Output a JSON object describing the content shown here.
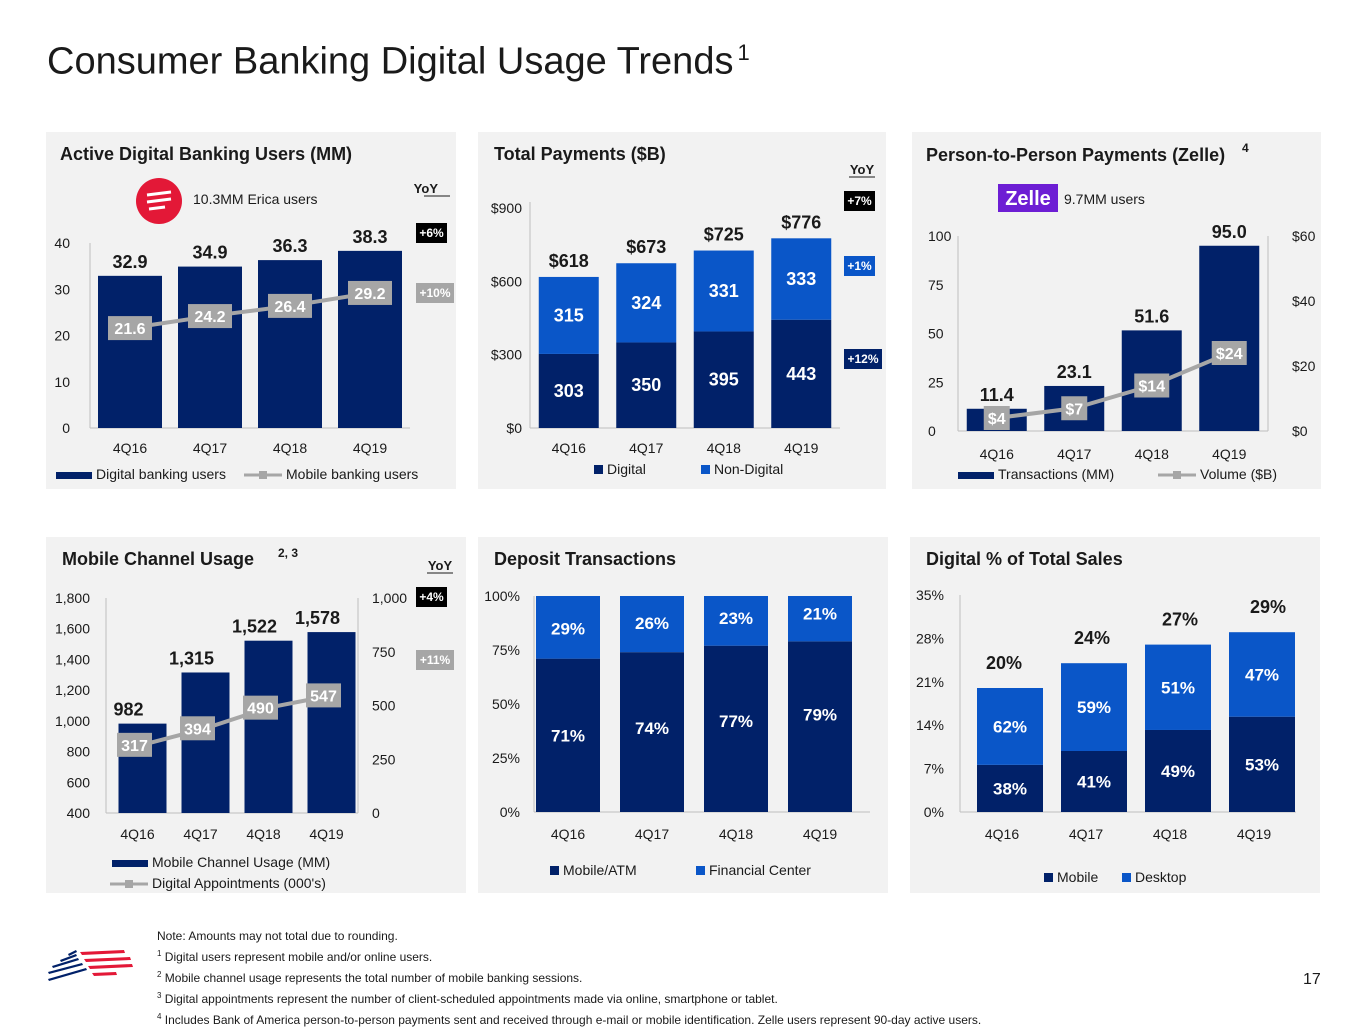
{
  "page": {
    "title": "Consumer Banking Digital Usage Trends",
    "title_sup": "1",
    "page_number": "17"
  },
  "footnotes": [
    {
      "sup": "",
      "text": "Note: Amounts may not total due to rounding."
    },
    {
      "sup": "1",
      "text": "Digital users represent mobile and/or online users."
    },
    {
      "sup": "2",
      "text": "Mobile channel usage represents the total number of mobile banking sessions."
    },
    {
      "sup": "3",
      "text": "Digital appointments represent the number of client-scheduled appointments made via online, smartphone or tablet."
    },
    {
      "sup": "4",
      "text": "Includes Bank of America person-to-person payments sent and received through e-mail or mobile identification. Zelle users represent 90-day active users."
    }
  ],
  "colors": {
    "navy": "#012169",
    "blue": "#0a56c8",
    "gray_line": "#a6a6a6",
    "panel_bg": "#f2f2f2",
    "brand_red": "#e31837"
  },
  "chart_data": [
    {
      "id": "active_users",
      "type": "bar",
      "title": "Active Digital Banking Users (MM)",
      "title_sup": "",
      "yoy_header": "YoY",
      "note": "10.3MM Erica users",
      "note_icon": "erica-icon",
      "categories": [
        "4Q16",
        "4Q17",
        "4Q18",
        "4Q19"
      ],
      "ylim": [
        0,
        40
      ],
      "yticks": [
        0,
        10,
        20,
        30,
        40
      ],
      "series": [
        {
          "name": "Digital banking users",
          "kind": "bar",
          "values": [
            32.9,
            34.9,
            36.3,
            38.3
          ],
          "labels": [
            "32.9",
            "34.9",
            "36.3",
            "38.3"
          ]
        },
        {
          "name": "Mobile banking users",
          "kind": "line",
          "values": [
            21.6,
            24.2,
            26.4,
            29.2
          ],
          "labels": [
            "21.6",
            "24.2",
            "26.4",
            "29.2"
          ]
        }
      ],
      "yoy": [
        "+6%",
        "+10%"
      ]
    },
    {
      "id": "total_payments",
      "type": "bar",
      "stacked": true,
      "title": "Total Payments ($B)",
      "yoy_header": "YoY",
      "categories": [
        "4Q16",
        "4Q17",
        "4Q18",
        "4Q19"
      ],
      "ylim": [
        0,
        900
      ],
      "ytick_labels": [
        "$0",
        "$300",
        "$600",
        "$900"
      ],
      "series": [
        {
          "name": "Digital",
          "values": [
            303,
            350,
            395,
            443
          ]
        },
        {
          "name": "Non-Digital",
          "values": [
            315,
            324,
            331,
            333
          ]
        }
      ],
      "totals": [
        "$618",
        "$673",
        "$725",
        "$776"
      ],
      "yoy": [
        "+7%",
        "+1%",
        "+12%"
      ]
    },
    {
      "id": "zelle",
      "type": "bar",
      "title": "Person-to-Person Payments (Zelle)",
      "title_sup": "4",
      "brand": "Zelle",
      "note": "9.7MM users",
      "categories": [
        "4Q16",
        "4Q17",
        "4Q18",
        "4Q19"
      ],
      "ylim": [
        0,
        100
      ],
      "yticks": [
        0,
        25,
        50,
        75,
        100
      ],
      "y2lim": [
        0,
        60
      ],
      "y2tick_labels": [
        "$0",
        "$20",
        "$40",
        "$60"
      ],
      "series": [
        {
          "name": "Transactions (MM)",
          "kind": "bar",
          "values": [
            11.4,
            23.1,
            51.6,
            95.0
          ],
          "labels": [
            "11.4",
            "23.1",
            "51.6",
            "95.0"
          ]
        },
        {
          "name": "Volume ($B)",
          "kind": "line",
          "axis": "right",
          "values": [
            4,
            7,
            14,
            24
          ],
          "labels": [
            "$4",
            "$7",
            "$14",
            "$24"
          ]
        }
      ]
    },
    {
      "id": "mobile_channel",
      "type": "bar",
      "title": "Mobile Channel Usage",
      "title_sup": "2, 3",
      "yoy_header": "YoY",
      "categories": [
        "4Q16",
        "4Q17",
        "4Q18",
        "4Q19"
      ],
      "ylim": [
        400,
        1800
      ],
      "ytick_labels": [
        "400",
        "600",
        "800",
        "1,000",
        "1,200",
        "1,400",
        "1,600",
        "1,800"
      ],
      "y2lim": [
        0,
        1000
      ],
      "y2tick_labels": [
        "0",
        "250",
        "500",
        "750",
        "1,000"
      ],
      "series": [
        {
          "name": "Mobile Channel Usage (MM)",
          "kind": "bar",
          "values": [
            982,
            1315,
            1522,
            1578
          ],
          "labels": [
            "982",
            "1,315",
            "1,522",
            "1,578"
          ]
        },
        {
          "name": "Digital Appointments (000's)",
          "kind": "line",
          "axis": "right",
          "values": [
            317,
            394,
            490,
            547
          ],
          "labels": [
            "317",
            "394",
            "490",
            "547"
          ]
        }
      ],
      "yoy": [
        "+4%",
        "+11%"
      ]
    },
    {
      "id": "deposit_transactions",
      "type": "bar",
      "stacked": true,
      "title": "Deposit Transactions",
      "categories": [
        "4Q16",
        "4Q17",
        "4Q18",
        "4Q19"
      ],
      "ylim": [
        0,
        100
      ],
      "ytick_labels": [
        "0%",
        "25%",
        "50%",
        "75%",
        "100%"
      ],
      "series": [
        {
          "name": "Mobile/ATM",
          "values": [
            71,
            74,
            77,
            79
          ],
          "labels": [
            "71%",
            "74%",
            "77%",
            "79%"
          ]
        },
        {
          "name": "Financial Center",
          "values": [
            29,
            26,
            23,
            21
          ],
          "labels": [
            "29%",
            "26%",
            "23%",
            "21%"
          ]
        }
      ]
    },
    {
      "id": "digital_sales",
      "type": "bar",
      "stacked": true,
      "title": "Digital % of Total Sales",
      "categories": [
        "4Q16",
        "4Q17",
        "4Q18",
        "4Q19"
      ],
      "ylim": [
        0,
        35
      ],
      "ytick_labels": [
        "0%",
        "7%",
        "14%",
        "21%",
        "28%",
        "35%"
      ],
      "totals": [
        "20%",
        "24%",
        "27%",
        "29%"
      ],
      "total_values": [
        20,
        24,
        27,
        29
      ],
      "series": [
        {
          "name": "Mobile",
          "share": [
            38,
            41,
            49,
            53
          ],
          "labels": [
            "38%",
            "41%",
            "49%",
            "53%"
          ]
        },
        {
          "name": "Desktop",
          "share": [
            62,
            59,
            51,
            47
          ],
          "labels": [
            "62%",
            "59%",
            "51%",
            "47%"
          ]
        }
      ]
    }
  ]
}
